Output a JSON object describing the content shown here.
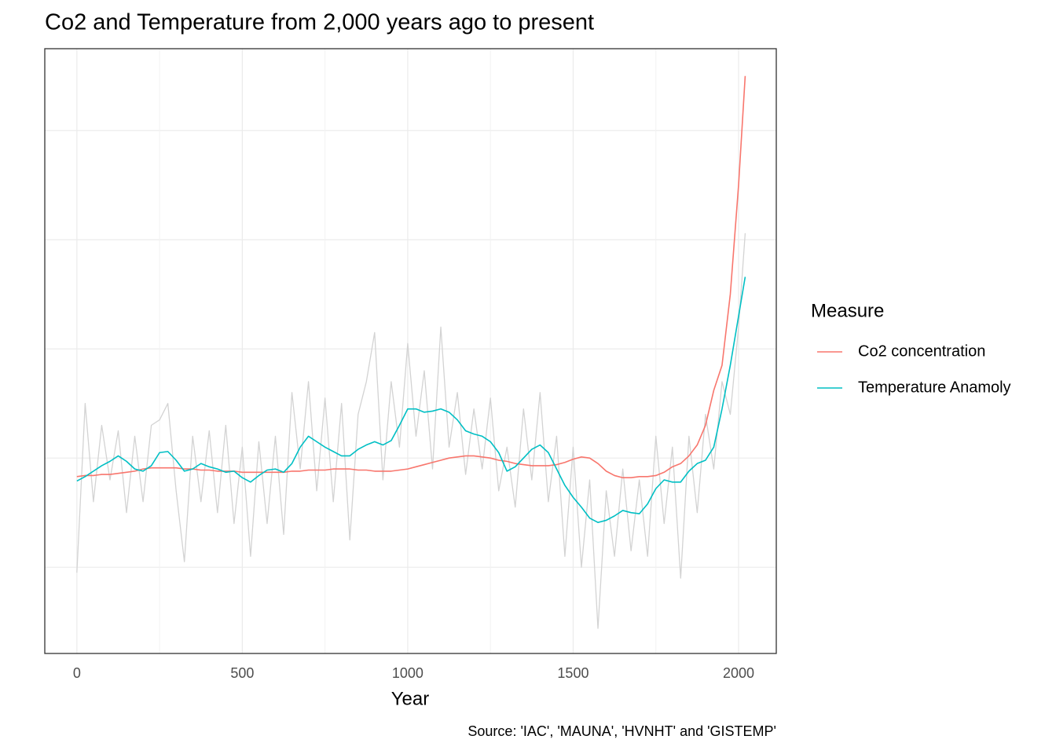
{
  "chart_data": {
    "type": "line",
    "title": "Co2 and Temperature from 2,000 years ago to present",
    "x_label": "Year",
    "caption": "Source: 'IAC', 'MAUNA', 'HVNHT' and 'GISTEMP'",
    "legend_title": "Measure",
    "legend_position": "right",
    "grid": true,
    "xlim": [
      -97,
      2114
    ],
    "xticks": [
      0,
      500,
      1000,
      1500,
      2000
    ],
    "ylim": [
      -1.79,
      3.75
    ],
    "yticks": [
      -1,
      0,
      1,
      2,
      3
    ],
    "x": [
      0,
      25,
      50,
      75,
      100,
      125,
      150,
      175,
      200,
      225,
      250,
      275,
      300,
      325,
      350,
      375,
      400,
      425,
      450,
      475,
      500,
      525,
      550,
      575,
      600,
      625,
      650,
      675,
      700,
      725,
      750,
      775,
      800,
      825,
      850,
      875,
      900,
      925,
      950,
      975,
      1000,
      1025,
      1050,
      1075,
      1100,
      1125,
      1150,
      1175,
      1200,
      1225,
      1250,
      1275,
      1300,
      1325,
      1350,
      1375,
      1400,
      1425,
      1450,
      1475,
      1500,
      1525,
      1550,
      1575,
      1600,
      1625,
      1650,
      1675,
      1700,
      1725,
      1750,
      1775,
      1800,
      1825,
      1850,
      1875,
      1900,
      1925,
      1950,
      1975,
      2000,
      2020
    ],
    "background_series": {
      "color": "#d3d3d3",
      "values": [
        -1.05,
        0.5,
        -0.4,
        0.3,
        -0.2,
        0.25,
        -0.5,
        0.2,
        -0.4,
        0.3,
        0.35,
        0.5,
        -0.3,
        -0.95,
        0.2,
        -0.4,
        0.25,
        -0.5,
        0.3,
        -0.6,
        0.1,
        -0.9,
        0.15,
        -0.6,
        0.2,
        -0.7,
        0.6,
        -0.1,
        0.7,
        -0.3,
        0.55,
        -0.4,
        0.5,
        -0.75,
        0.4,
        0.7,
        1.15,
        -0.2,
        0.7,
        0.1,
        1.05,
        0.2,
        0.8,
        -0.1,
        1.2,
        0.1,
        0.6,
        -0.15,
        0.45,
        -0.1,
        0.55,
        -0.3,
        0.1,
        -0.45,
        0.45,
        -0.2,
        0.6,
        -0.4,
        0.2,
        -0.9,
        0.1,
        -1.0,
        -0.2,
        -1.56,
        -0.3,
        -0.9,
        -0.1,
        -0.85,
        -0.2,
        -0.9,
        0.2,
        -0.6,
        0.1,
        -1.1,
        0.2,
        -0.5,
        0.4,
        -0.1,
        0.7,
        0.4,
        1.2,
        2.06
      ]
    },
    "series": [
      {
        "name": "Co2 concentration",
        "color": "#f8766d",
        "values": [
          -0.17,
          -0.16,
          -0.16,
          -0.15,
          -0.15,
          -0.14,
          -0.13,
          -0.12,
          -0.1,
          -0.09,
          -0.09,
          -0.09,
          -0.09,
          -0.1,
          -0.1,
          -0.11,
          -0.11,
          -0.12,
          -0.12,
          -0.12,
          -0.13,
          -0.13,
          -0.13,
          -0.13,
          -0.13,
          -0.13,
          -0.12,
          -0.12,
          -0.11,
          -0.11,
          -0.11,
          -0.1,
          -0.1,
          -0.1,
          -0.11,
          -0.11,
          -0.12,
          -0.12,
          -0.12,
          -0.11,
          -0.1,
          -0.08,
          -0.06,
          -0.04,
          -0.02,
          0,
          0.01,
          0.02,
          0.02,
          0.01,
          0,
          -0.02,
          -0.03,
          -0.05,
          -0.06,
          -0.07,
          -0.07,
          -0.07,
          -0.06,
          -0.04,
          -0.01,
          0.01,
          0,
          -0.05,
          -0.12,
          -0.16,
          -0.18,
          -0.18,
          -0.17,
          -0.17,
          -0.16,
          -0.13,
          -0.08,
          -0.05,
          0.02,
          0.12,
          0.3,
          0.62,
          0.85,
          1.5,
          2.5,
          3.5
        ]
      },
      {
        "name": "Temperature Anamoly",
        "color": "#00bfc4",
        "values": [
          -0.21,
          -0.17,
          -0.12,
          -0.07,
          -0.03,
          0.02,
          -0.03,
          -0.1,
          -0.12,
          -0.07,
          0.05,
          0.06,
          -0.02,
          -0.12,
          -0.1,
          -0.05,
          -0.08,
          -0.1,
          -0.13,
          -0.12,
          -0.18,
          -0.22,
          -0.16,
          -0.11,
          -0.1,
          -0.13,
          -0.05,
          0.1,
          0.2,
          0.15,
          0.1,
          0.06,
          0.02,
          0.02,
          0.08,
          0.12,
          0.15,
          0.12,
          0.16,
          0.3,
          0.45,
          0.45,
          0.42,
          0.43,
          0.45,
          0.42,
          0.35,
          0.25,
          0.22,
          0.2,
          0.15,
          0.05,
          -0.12,
          -0.08,
          0,
          0.08,
          0.12,
          0.05,
          -0.1,
          -0.25,
          -0.36,
          -0.45,
          -0.55,
          -0.59,
          -0.57,
          -0.53,
          -0.48,
          -0.5,
          -0.51,
          -0.42,
          -0.28,
          -0.2,
          -0.22,
          -0.22,
          -0.12,
          -0.05,
          -0.02,
          0.1,
          0.45,
          0.85,
          1.3,
          1.66
        ]
      }
    ]
  }
}
